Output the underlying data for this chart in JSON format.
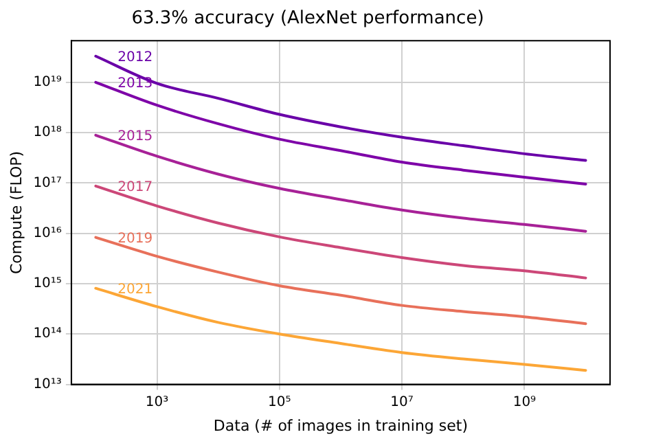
{
  "chart_data": {
    "type": "line",
    "title": "63.3% accuracy (AlexNet performance)",
    "xlabel": "Data (# of images in training set)",
    "ylabel": "Compute (FLOP)",
    "log": "xy",
    "grid": true,
    "legend": false,
    "marker": "none",
    "line_style": "solid",
    "x": [
      100,
      1000,
      10000,
      100000,
      1000000,
      10000000,
      100000000,
      1000000000,
      10000000000
    ],
    "xlim": [
      40,
      25000000000
    ],
    "xticks": [
      {
        "value": 1000,
        "label": "10³"
      },
      {
        "value": 100000,
        "label": "10⁵"
      },
      {
        "value": 10000000,
        "label": "10⁷"
      },
      {
        "value": 1000000000,
        "label": "10⁹"
      }
    ],
    "ylim": [
      10000000000000.0,
      6.7e+19
    ],
    "yticks": [
      {
        "value": 10000000000000.0,
        "label": "10¹³"
      },
      {
        "value": 100000000000000.0,
        "label": "10¹⁴"
      },
      {
        "value": 1000000000000000.0,
        "label": "10¹⁵"
      },
      {
        "value": 1e+16,
        "label": "10¹⁶"
      },
      {
        "value": 1e+17,
        "label": "10¹⁷"
      },
      {
        "value": 1e+18,
        "label": "10¹⁸"
      },
      {
        "value": 1e+19,
        "label": "10¹⁹"
      }
    ],
    "series": [
      {
        "name": "2012",
        "color": "#6a00a8",
        "values": [
          3.3e+19,
          9.5e+18,
          4.8e+18,
          2.3e+18,
          1.3e+18,
          8.1e+17,
          5.5e+17,
          3.8e+17,
          2.8e+17
        ]
      },
      {
        "name": "2013",
        "color": "#7e03a8",
        "values": [
          1e+19,
          3.5e+18,
          1.5e+18,
          7.4e+17,
          4.4e+17,
          2.6e+17,
          1.8e+17,
          1.3e+17,
          9.5e+16
        ]
      },
      {
        "name": "2015",
        "color": "#a72197",
        "values": [
          8.9e+17,
          3.4e+17,
          1.5e+17,
          7.8e+16,
          4.7e+16,
          2.9e+16,
          2e+16,
          1.5e+16,
          1.1e+16
        ]
      },
      {
        "name": "2017",
        "color": "#cc4778",
        "values": [
          8.7e+16,
          3.5e+16,
          1.6e+16,
          8500000000000000.0,
          5200000000000000.0,
          3300000000000000.0,
          2300000000000000.0,
          1800000000000000.0,
          1300000000000000.0
        ]
      },
      {
        "name": "2019",
        "color": "#e8705a",
        "values": [
          8300000000000000.0,
          3500000000000000.0,
          1700000000000000.0,
          910000000000000.0,
          590000000000000.0,
          370000000000000.0,
          280000000000000.0,
          220000000000000.0,
          160000000000000.0
        ]
      },
      {
        "name": "2021",
        "color": "#fca636",
        "values": [
          810000000000000.0,
          350000000000000.0,
          170000000000000.0,
          100000000000000.0,
          65000000000000.0,
          43000000000000.0,
          32000000000000.0,
          25000000000000.0,
          19000000000000.0
        ]
      }
    ]
  }
}
